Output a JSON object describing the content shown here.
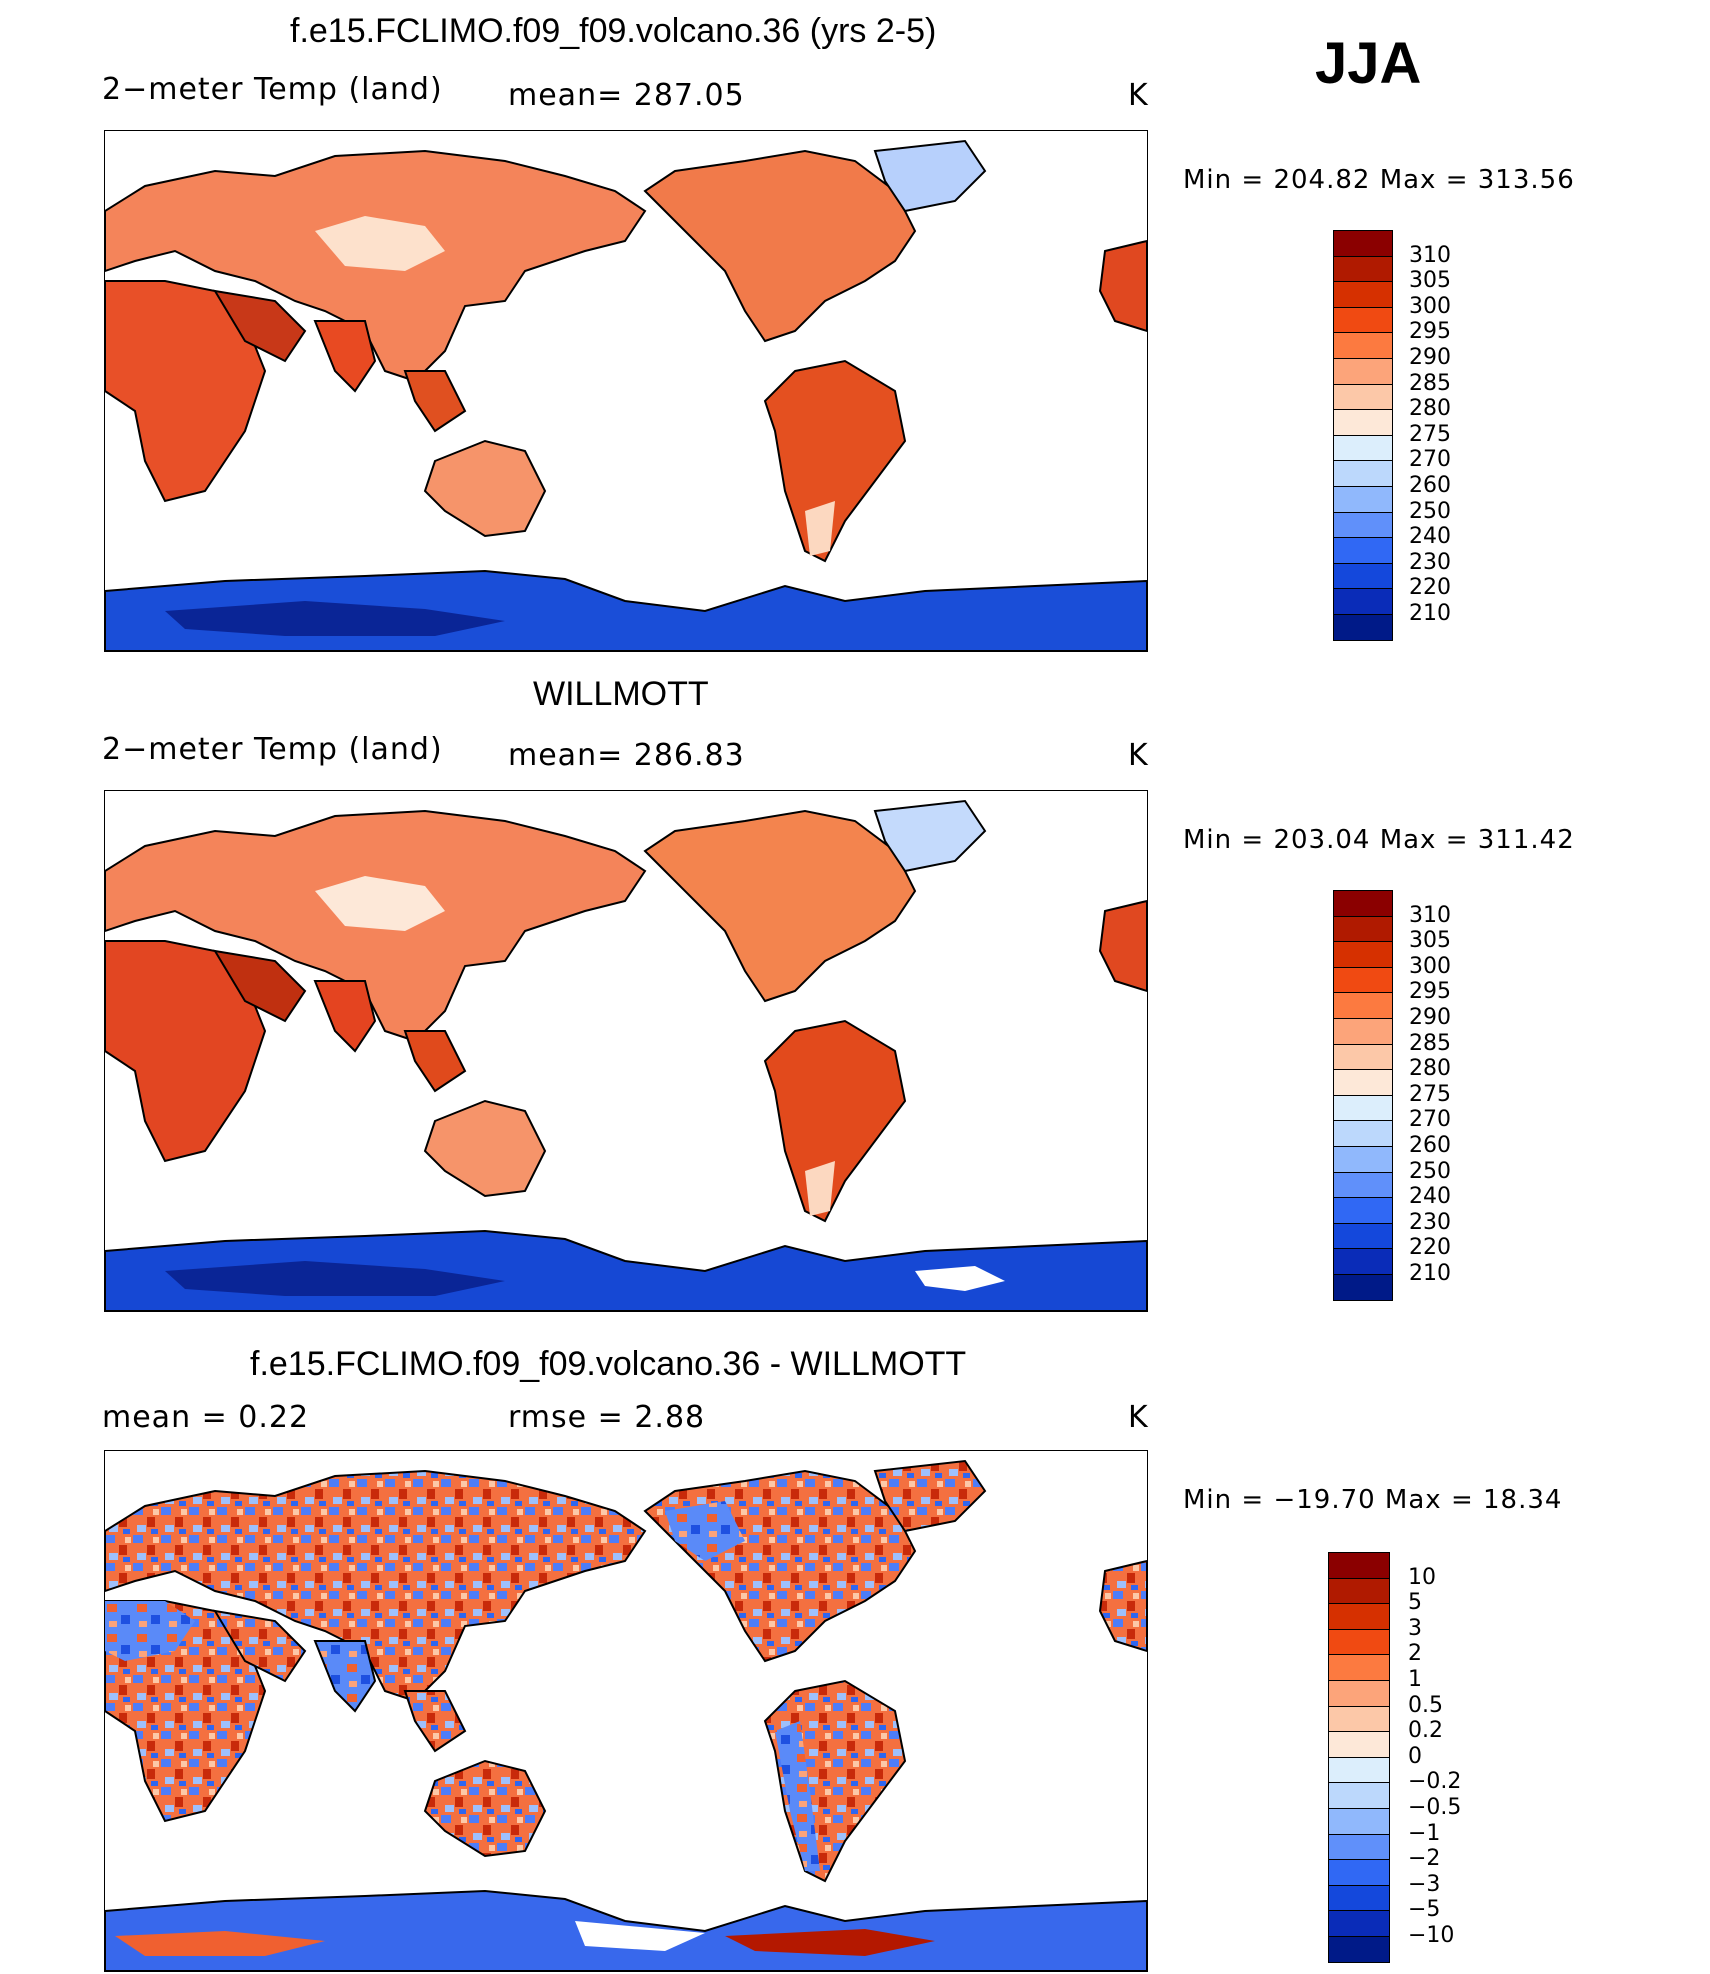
{
  "header": {
    "season": "JJA"
  },
  "panels": [
    {
      "title": "f.e15.FCLIMO.f09_f09.volcano.36 (yrs 2-5)",
      "left_label": "2−meter Temp (land)",
      "mid_label": "mean= 287.05",
      "units": "K",
      "minmax": "Min = 204.82 Max = 313.56",
      "type": "abs"
    },
    {
      "title": "WILLMOTT",
      "left_label": "2−meter Temp (land)",
      "mid_label": "mean= 286.83",
      "units": "K",
      "minmax": "Min = 203.04 Max = 311.42",
      "type": "abs"
    },
    {
      "title": "f.e15.FCLIMO.f09_f09.volcano.36 - WILLMOTT",
      "left_label": "mean =     0.22",
      "mid_label": "rmse =     2.88",
      "units": "K",
      "minmax": "Min = −19.70 Max =   18.34",
      "type": "diff"
    }
  ],
  "colorbar_abs": {
    "levels": [
      "310",
      "305",
      "300",
      "295",
      "290",
      "285",
      "280",
      "275",
      "270",
      "260",
      "250",
      "240",
      "230",
      "220",
      "210"
    ],
    "colors": [
      "#8b0000",
      "#b01a00",
      "#d63000",
      "#f04a12",
      "#fc7a40",
      "#fca47a",
      "#fcc8a8",
      "#fde8d8",
      "#dceefc",
      "#bcd8fc",
      "#90b8fc",
      "#6090fa",
      "#3068f4",
      "#1448dc",
      "#0a2cb8",
      "#001a88"
    ]
  },
  "colorbar_diff": {
    "levels": [
      "10",
      "5",
      "3",
      "2",
      "1",
      "0.5",
      "0.2",
      "0",
      "−0.2",
      "−0.5",
      "−1",
      "−2",
      "−3",
      "−5",
      "−10"
    ],
    "colors": [
      "#8b0000",
      "#b01a00",
      "#d63000",
      "#f04a12",
      "#fc7a40",
      "#fca47a",
      "#fcc8a8",
      "#fde8d8",
      "#dceefc",
      "#bcd8fc",
      "#90b8fc",
      "#6090fa",
      "#3068f4",
      "#1448dc",
      "#0a2cb8",
      "#001a88"
    ]
  }
}
